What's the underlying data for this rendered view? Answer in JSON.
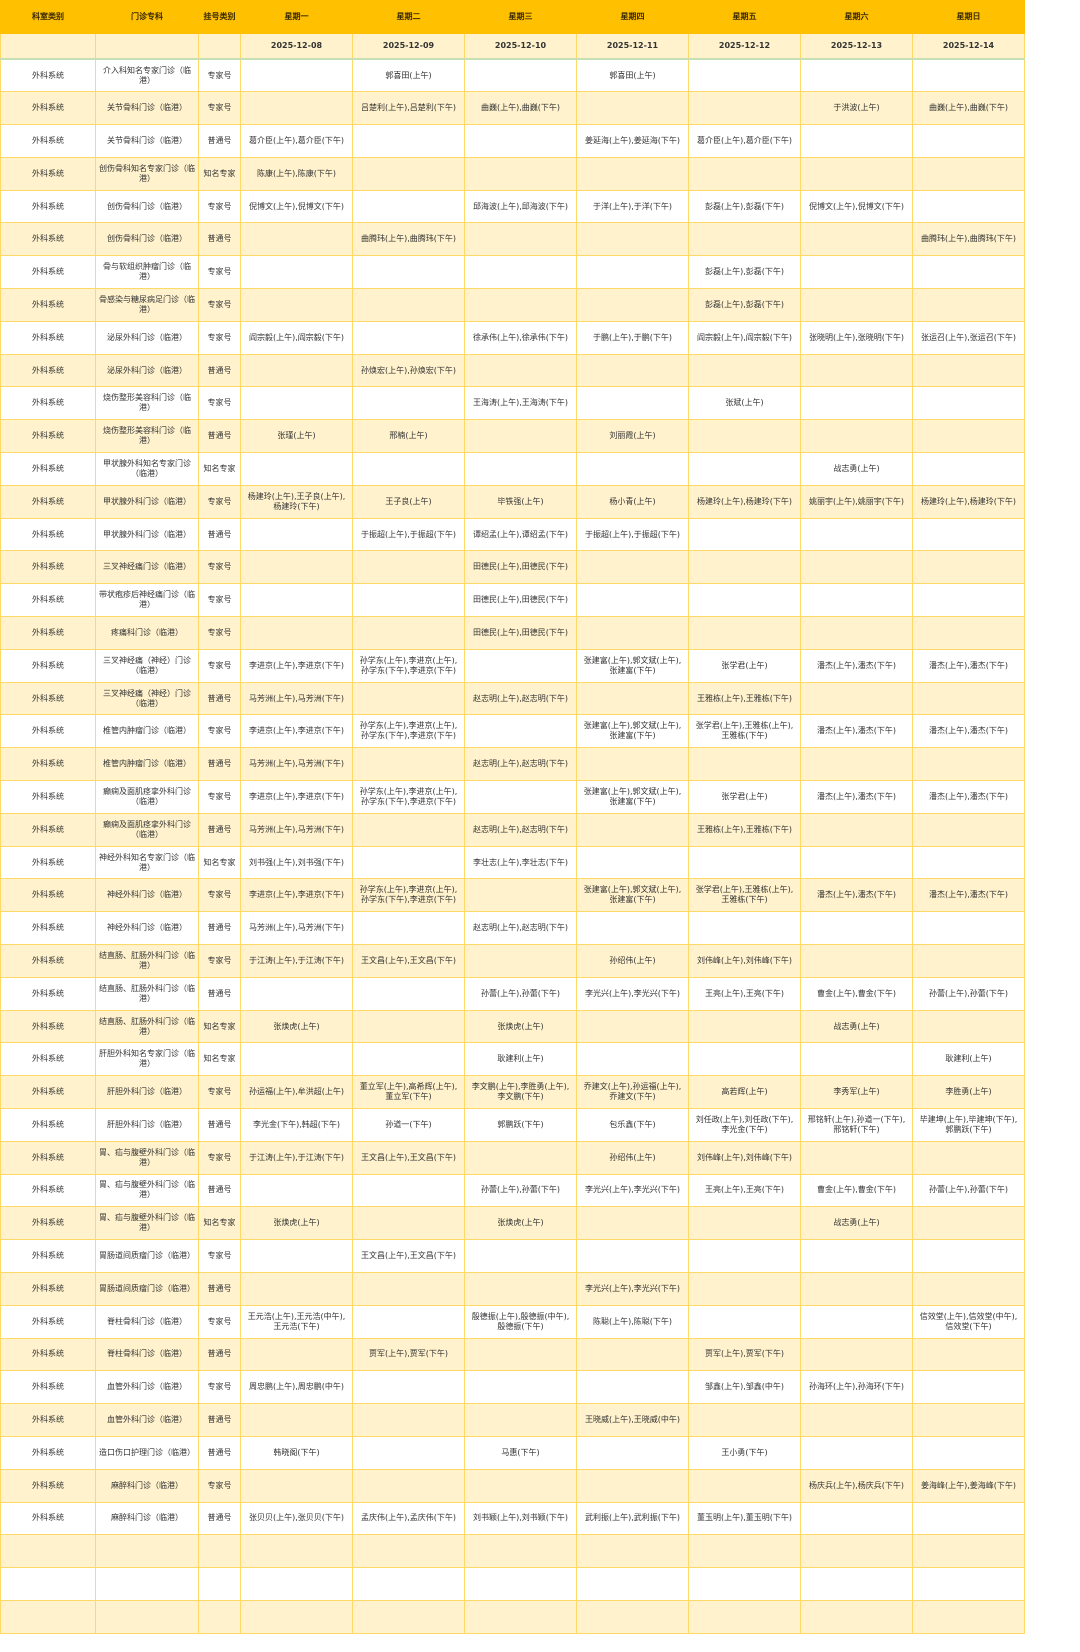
{
  "header": {
    "columns": [
      "科室类别",
      "门诊专科",
      "挂号类别",
      "星期一",
      "星期二",
      "星期三",
      "星期四",
      "星期五",
      "星期六",
      "星期日"
    ],
    "dates": [
      "",
      "",
      "",
      "2025-12-08",
      "2025-12-09",
      "2025-12-10",
      "2025-12-11",
      "2025-12-12",
      "2025-12-13",
      "2025-12-14"
    ]
  },
  "colors": {
    "header_bg": "#FFC000",
    "alt_row_bg": "#FFF2CC",
    "border": "#FFD966"
  },
  "rows": [
    [
      "外科系统",
      "介入科知名专家门诊（临港）",
      "专家号",
      "",
      "郭喜田(上午)",
      "",
      "郭喜田(上午)",
      "",
      "",
      ""
    ],
    [
      "外科系统",
      "关节骨科门诊（临港）",
      "专家号",
      "",
      "吕楚利(上午),吕楚利(下午)",
      "曲巍(上午),曲巍(下午)",
      "",
      "",
      "于洪波(上午)",
      "曲巍(上午),曲巍(下午)"
    ],
    [
      "外科系统",
      "关节骨科门诊（临港）",
      "普通号",
      "葛介臣(上午),葛介臣(下午)",
      "",
      "",
      "姜延海(上午),姜延海(下午)",
      "葛介臣(上午),葛介臣(下午)",
      "",
      ""
    ],
    [
      "外科系统",
      "创伤骨科知名专家门诊（临港）",
      "知名专家",
      "陈康(上午),陈康(下午)",
      "",
      "",
      "",
      "",
      "",
      ""
    ],
    [
      "外科系统",
      "创伤骨科门诊（临港）",
      "专家号",
      "倪博文(上午),倪博文(下午)",
      "",
      "邱海波(上午),邱海波(下午)",
      "于洋(上午),于洋(下午)",
      "彭磊(上午),彭磊(下午)",
      "倪博文(上午),倪博文(下午)",
      ""
    ],
    [
      "外科系统",
      "创伤骨科门诊（临港）",
      "普通号",
      "",
      "曲腾玮(上午),曲腾玮(下午)",
      "",
      "",
      "",
      "",
      "曲腾玮(上午),曲腾玮(下午)"
    ],
    [
      "外科系统",
      "骨与软组织肿瘤门诊（临港）",
      "专家号",
      "",
      "",
      "",
      "",
      "彭磊(上午),彭磊(下午)",
      "",
      ""
    ],
    [
      "外科系统",
      "骨感染与糖尿病足门诊（临港）",
      "专家号",
      "",
      "",
      "",
      "",
      "彭磊(上午),彭磊(下午)",
      "",
      ""
    ],
    [
      "外科系统",
      "泌尿外科门诊（临港）",
      "专家号",
      "阎宗毅(上午),阎宗毅(下午)",
      "",
      "徐承伟(上午),徐承伟(下午)",
      "于鹏(上午),于鹏(下午)",
      "阎宗毅(上午),阎宗毅(下午)",
      "张晓明(上午),张晓明(下午)",
      "张运召(上午),张运召(下午)"
    ],
    [
      "外科系统",
      "泌尿外科门诊（临港）",
      "普通号",
      "",
      "孙焕宏(上午),孙焕宏(下午)",
      "",
      "",
      "",
      "",
      ""
    ],
    [
      "外科系统",
      "烧伤整形美容科门诊（临港）",
      "专家号",
      "",
      "",
      "王海涛(上午),王海涛(下午)",
      "",
      "张斌(上午)",
      "",
      ""
    ],
    [
      "外科系统",
      "烧伤整形美容科门诊（临港）",
      "普通号",
      "张瑾(上午)",
      "邢楠(上午)",
      "",
      "刘丽霞(上午)",
      "",
      "",
      ""
    ],
    [
      "外科系统",
      "甲状腺外科知名专家门诊（临港）",
      "知名专家",
      "",
      "",
      "",
      "",
      "",
      "战志勇(上午)",
      ""
    ],
    [
      "外科系统",
      "甲状腺外科门诊（临港）",
      "专家号",
      "杨建玲(上午),王子良(上午),杨建玲(下午)",
      "王子良(上午)",
      "毕铁强(上午)",
      "杨小青(上午)",
      "杨建玲(上午),杨建玲(下午)",
      "姚丽宇(上午),姚丽宇(下午)",
      "杨建玲(上午),杨建玲(下午)"
    ],
    [
      "外科系统",
      "甲状腺外科门诊（临港）",
      "普通号",
      "",
      "于振超(上午),于振超(下午)",
      "谭绍孟(上午),谭绍孟(下午)",
      "于振超(上午),于振超(下午)",
      "",
      "",
      ""
    ],
    [
      "外科系统",
      "三叉神经痛门诊（临港）",
      "专家号",
      "",
      "",
      "田德民(上午),田德民(下午)",
      "",
      "",
      "",
      ""
    ],
    [
      "外科系统",
      "带状疱疹后神经痛门诊（临港）",
      "专家号",
      "",
      "",
      "田德民(上午),田德民(下午)",
      "",
      "",
      "",
      ""
    ],
    [
      "外科系统",
      "疼痛科门诊（临港）",
      "专家号",
      "",
      "",
      "田德民(上午),田德民(下午)",
      "",
      "",
      "",
      ""
    ],
    [
      "外科系统",
      "三叉神经痛（神经）门诊（临港）",
      "专家号",
      "李进京(上午),李进京(下午)",
      "孙学东(上午),李进京(上午),孙学东(下午),李进京(下午)",
      "",
      "张建富(上午),郭文斌(上午),张建富(下午)",
      "张学君(上午)",
      "潘杰(上午),潘杰(下午)",
      "潘杰(上午),潘杰(下午)"
    ],
    [
      "外科系统",
      "三叉神经痛（神经）门诊（临港）",
      "普通号",
      "马芳洲(上午),马芳洲(下午)",
      "",
      "赵志明(上午),赵志明(下午)",
      "",
      "王雅栋(上午),王雅栋(下午)",
      "",
      ""
    ],
    [
      "外科系统",
      "椎管内肿瘤门诊（临港）",
      "专家号",
      "李进京(上午),李进京(下午)",
      "孙学东(上午),李进京(上午),孙学东(下午),李进京(下午)",
      "",
      "张建富(上午),郭文斌(上午),张建富(下午)",
      "张学君(上午),王雅栋(上午),王雅栋(下午)",
      "潘杰(上午),潘杰(下午)",
      "潘杰(上午),潘杰(下午)"
    ],
    [
      "外科系统",
      "椎管内肿瘤门诊（临港）",
      "普通号",
      "马芳洲(上午),马芳洲(下午)",
      "",
      "赵志明(上午),赵志明(下午)",
      "",
      "",
      "",
      ""
    ],
    [
      "外科系统",
      "癫痫及面肌痉挛外科门诊（临港）",
      "专家号",
      "李进京(上午),李进京(下午)",
      "孙学东(上午),李进京(上午),孙学东(下午),李进京(下午)",
      "",
      "张建富(上午),郭文斌(上午),张建富(下午)",
      "张学君(上午)",
      "潘杰(上午),潘杰(下午)",
      "潘杰(上午),潘杰(下午)"
    ],
    [
      "外科系统",
      "癫痫及面肌痉挛外科门诊（临港）",
      "普通号",
      "马芳洲(上午),马芳洲(下午)",
      "",
      "赵志明(上午),赵志明(下午)",
      "",
      "王雅栋(上午),王雅栋(下午)",
      "",
      ""
    ],
    [
      "外科系统",
      "神经外科知名专家门诊（临港）",
      "知名专家",
      "刘书强(上午),刘书强(下午)",
      "",
      "李壮志(上午),李壮志(下午)",
      "",
      "",
      "",
      ""
    ],
    [
      "外科系统",
      "神经外科门诊（临港）",
      "专家号",
      "李进京(上午),李进京(下午)",
      "孙学东(上午),李进京(上午),孙学东(下午),李进京(下午)",
      "",
      "张建富(上午),郭文斌(上午),张建富(下午)",
      "张学君(上午),王雅栋(上午),王雅栋(下午)",
      "潘杰(上午),潘杰(下午)",
      "潘杰(上午),潘杰(下午)"
    ],
    [
      "外科系统",
      "神经外科门诊（临港）",
      "普通号",
      "马芳洲(上午),马芳洲(下午)",
      "",
      "赵志明(上午),赵志明(下午)",
      "",
      "",
      "",
      ""
    ],
    [
      "外科系统",
      "结直肠、肛肠外科门诊（临港）",
      "专家号",
      "于江涛(上午),于江涛(下午)",
      "王文昌(上午),王文昌(下午)",
      "",
      "孙绍伟(上午)",
      "刘伟峰(上午),刘伟峰(下午)",
      "",
      ""
    ],
    [
      "外科系统",
      "结直肠、肛肠外科门诊（临港）",
      "普通号",
      "",
      "",
      "孙蕾(上午),孙蕾(下午)",
      "李光兴(上午),李光兴(下午)",
      "王亮(上午),王亮(下午)",
      "曹金(上午),曹金(下午)",
      "孙蕾(上午),孙蕾(下午)"
    ],
    [
      "外科系统",
      "结直肠、肛肠外科门诊（临港）",
      "知名专家",
      "张焕虎(上午)",
      "",
      "张焕虎(上午)",
      "",
      "",
      "战志勇(上午)",
      ""
    ],
    [
      "外科系统",
      "肝胆外科知名专家门诊（临港）",
      "知名专家",
      "",
      "",
      "耿建利(上午)",
      "",
      "",
      "",
      "耿建利(上午)"
    ],
    [
      "外科系统",
      "肝胆外科门诊（临港）",
      "专家号",
      "孙运福(上午),牟洪超(上午)",
      "董立军(上午),高希辉(上午),董立军(下午)",
      "李文鹏(上午),李胜勇(上午),李文鹏(下午)",
      "乔建文(上午),孙运福(上午),乔建文(下午)",
      "高若辉(上午)",
      "李秀军(上午)",
      "李胜勇(上午)"
    ],
    [
      "外科系统",
      "肝胆外科门诊（临港）",
      "普通号",
      "李光金(下午),韩超(下午)",
      "孙道一(下午)",
      "郭鹏跃(下午)",
      "包乐鑫(下午)",
      "刘任政(上午),刘任政(下午),李光金(下午)",
      "邢铭轩(上午),孙道一(下午),邢铭轩(下午)",
      "毕建坤(上午),毕建坤(下午),郭鹏跃(下午)"
    ],
    [
      "外科系统",
      "胃、疝与腹壁外科门诊（临港）",
      "专家号",
      "于江涛(上午),于江涛(下午)",
      "王文昌(上午),王文昌(下午)",
      "",
      "孙绍伟(上午)",
      "刘伟峰(上午),刘伟峰(下午)",
      "",
      ""
    ],
    [
      "外科系统",
      "胃、疝与腹壁外科门诊（临港）",
      "普通号",
      "",
      "",
      "孙蕾(上午),孙蕾(下午)",
      "李光兴(上午),李光兴(下午)",
      "王亮(上午),王亮(下午)",
      "曹金(上午),曹金(下午)",
      "孙蕾(上午),孙蕾(下午)"
    ],
    [
      "外科系统",
      "胃、疝与腹壁外科门诊（临港）",
      "知名专家",
      "张焕虎(上午)",
      "",
      "张焕虎(上午)",
      "",
      "",
      "战志勇(上午)",
      ""
    ],
    [
      "外科系统",
      "胃肠道间质瘤门诊（临港）",
      "专家号",
      "",
      "王文昌(上午),王文昌(下午)",
      "",
      "",
      "",
      "",
      ""
    ],
    [
      "外科系统",
      "胃肠道间质瘤门诊（临港）",
      "普通号",
      "",
      "",
      "",
      "李光兴(上午),李光兴(下午)",
      "",
      "",
      ""
    ],
    [
      "外科系统",
      "脊柱骨科门诊（临港）",
      "专家号",
      "王元浩(上午),王元浩(中午),王元浩(下午)",
      "",
      "殷德振(上午),殷德振(中午),殷德振(下午)",
      "陈聪(上午),陈聪(下午)",
      "",
      "",
      "信效堂(上午),信效堂(中午),信效堂(下午)"
    ],
    [
      "外科系统",
      "脊柱骨科门诊（临港）",
      "普通号",
      "",
      "贾军(上午),贾军(下午)",
      "",
      "",
      "贾军(上午),贾军(下午)",
      "",
      ""
    ],
    [
      "外科系统",
      "血管外科门诊（临港）",
      "专家号",
      "周忠鹏(上午),周忠鹏(中午)",
      "",
      "",
      "",
      "邹鑫(上午),邹鑫(中午)",
      "孙海环(上午),孙海环(下午)",
      ""
    ],
    [
      "外科系统",
      "血管外科门诊（临港）",
      "普通号",
      "",
      "",
      "",
      "王晓威(上午),王晓威(中午)",
      "",
      "",
      ""
    ],
    [
      "外科系统",
      "造口伤口护理门诊（临港）",
      "普通号",
      "韩晓阁(下午)",
      "",
      "马惠(下午)",
      "",
      "王小勇(下午)",
      "",
      ""
    ],
    [
      "外科系统",
      "麻醉科门诊（临港）",
      "专家号",
      "",
      "",
      "",
      "",
      "",
      "杨庆兵(上午),杨庆兵(下午)",
      "姜海峰(上午),姜海峰(下午)"
    ],
    [
      "外科系统",
      "麻醉科门诊（临港）",
      "普通号",
      "张贝贝(上午),张贝贝(下午)",
      "孟庆伟(上午),孟庆伟(下午)",
      "刘书颖(上午),刘书颖(下午)",
      "武利振(上午),武利振(下午)",
      "董玉明(上午),董玉明(下午)",
      "",
      ""
    ]
  ]
}
